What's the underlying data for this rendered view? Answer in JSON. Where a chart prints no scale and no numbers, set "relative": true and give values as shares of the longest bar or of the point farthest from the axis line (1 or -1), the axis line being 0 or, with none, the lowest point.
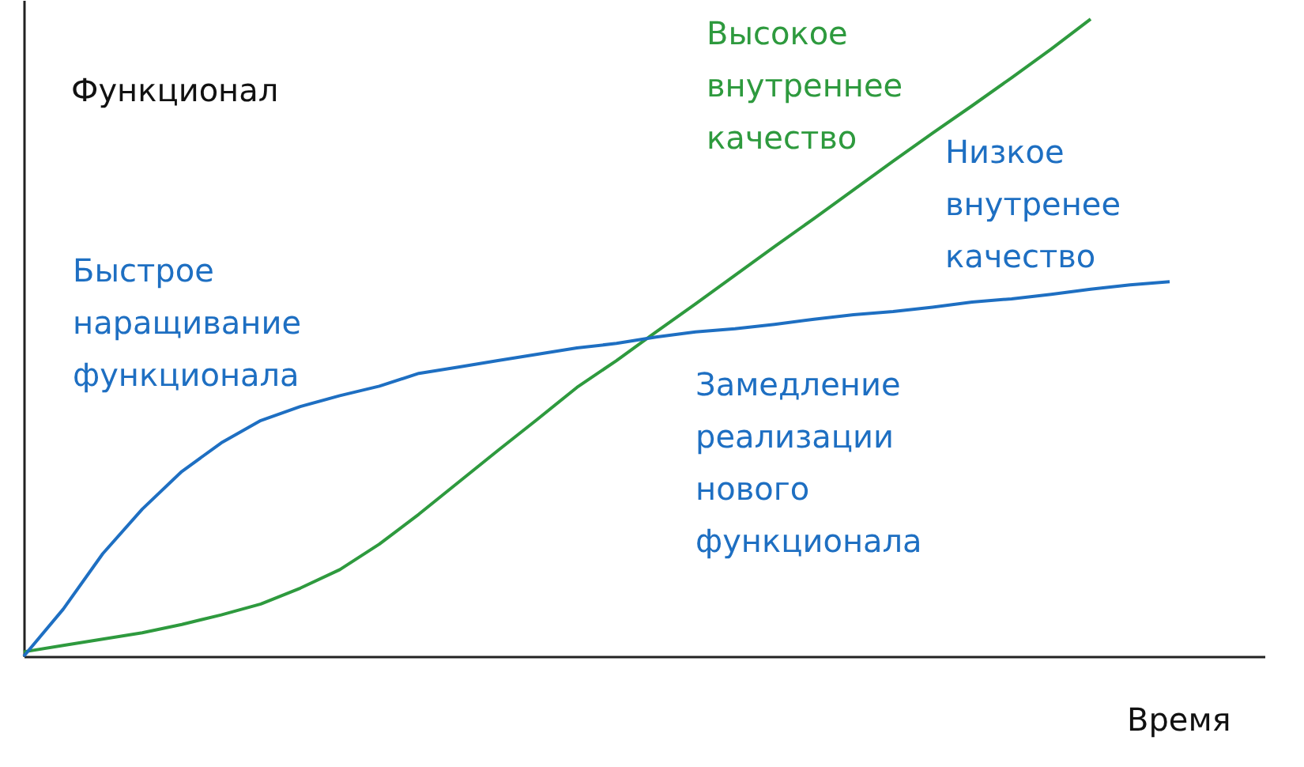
{
  "chart_data": {
    "type": "line",
    "relative": true,
    "tick_labels": false,
    "grid": false,
    "legend": false,
    "marker": "none",
    "line_style": "solid",
    "xlabel": "Время",
    "ylabel": "Функционал",
    "categories": [
      null,
      null,
      null,
      null,
      null,
      null,
      null,
      null,
      null,
      null,
      null,
      null,
      null,
      null,
      null,
      null,
      null,
      null,
      null,
      null,
      null,
      null,
      null,
      null,
      null,
      null,
      null,
      null,
      null,
      null
    ],
    "series": [
      {
        "name": "Высокое внутреннее качество",
        "color": "#2e9a3e",
        "values": [
          0.007,
          0.017,
          0.027,
          0.037,
          0.05,
          0.065,
          0.082,
          0.107,
          0.136,
          0.176,
          0.223,
          0.273,
          0.323,
          0.372,
          0.422,
          0.464,
          0.509,
          0.553,
          0.598,
          0.643,
          0.687,
          0.732,
          0.777,
          0.821,
          0.864,
          0.908,
          0.953,
          1.0,
          null,
          null
        ]
      },
      {
        "name": "Низкое внутренее качество",
        "color": "#1e6fc2",
        "values": [
          0,
          0.074,
          0.161,
          0.231,
          0.29,
          0.335,
          0.37,
          0.392,
          0.409,
          0.424,
          0.444,
          0.454,
          0.464,
          0.474,
          0.484,
          0.491,
          0.501,
          0.509,
          0.514,
          0.521,
          0.529,
          0.536,
          0.541,
          0.548,
          0.556,
          0.561,
          0.568,
          0.576,
          0.583,
          0.588
        ]
      }
    ],
    "annotations": [
      "Быстрое наращивание функционала",
      "Замедление реализации нового функционала"
    ]
  }
}
